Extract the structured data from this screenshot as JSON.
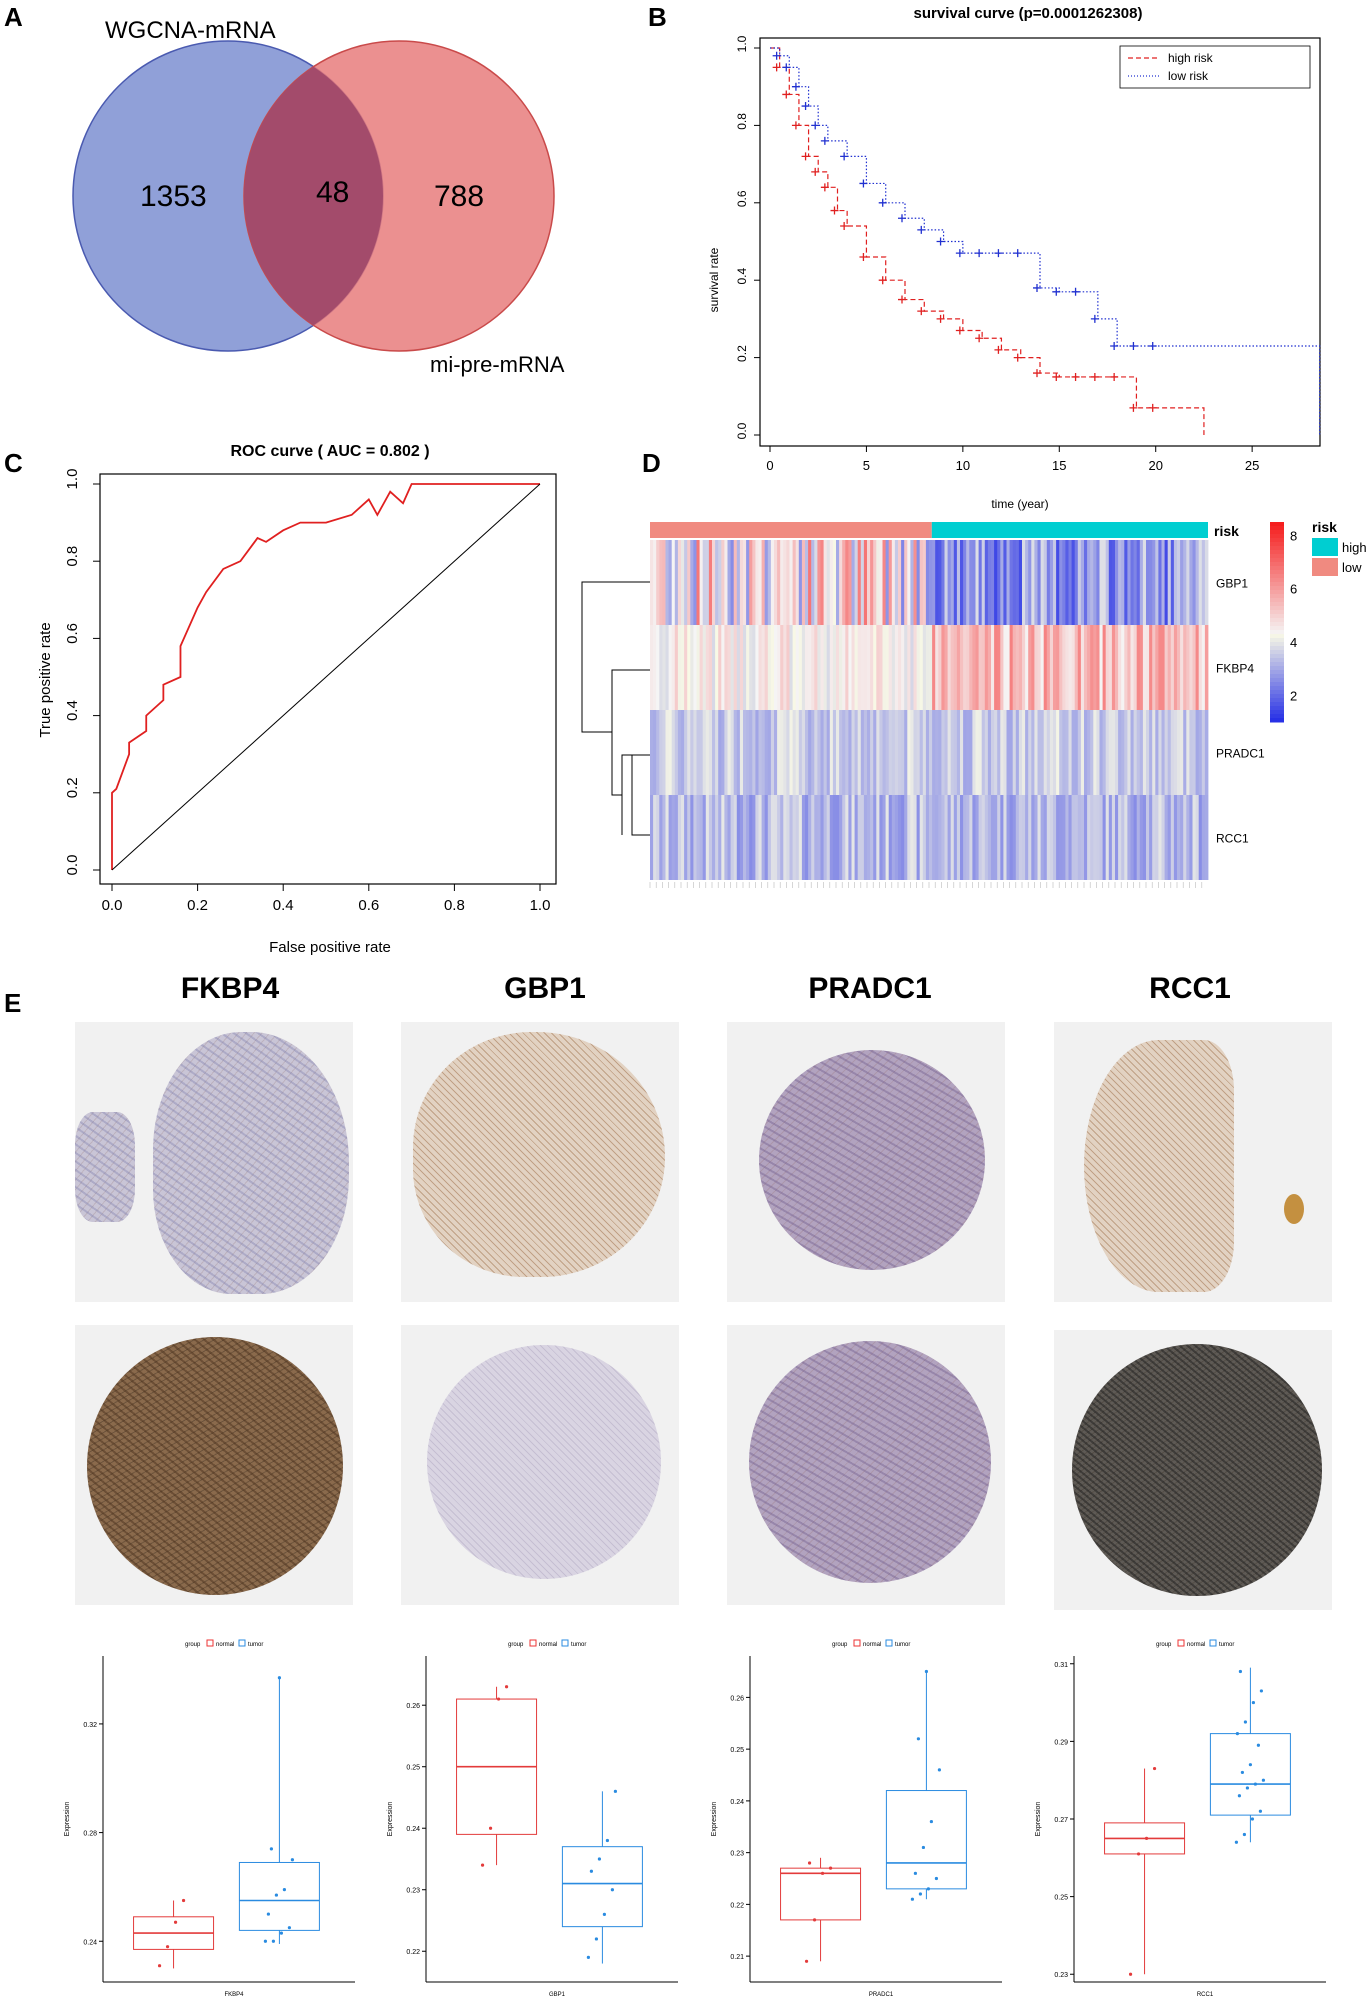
{
  "panels": {
    "A": "A",
    "B": "B",
    "C": "C",
    "D": "D",
    "E": "E"
  },
  "venn": {
    "left_label": "WGCNA-mRNA",
    "right_label": "mi-pre-mRNA",
    "left_only": "1353",
    "overlap": "48",
    "right_only": "788",
    "colors": {
      "left": "#7d8fd1",
      "right": "#e77c7c",
      "overlap": "#a34b6b"
    }
  },
  "survival": {
    "title": "survival curve (p=0.0001262308)",
    "xlabel": "time (year)",
    "ylabel": "survival rate",
    "xticks": [
      "0",
      "5",
      "10",
      "15",
      "20",
      "25"
    ],
    "yticks": [
      "0.0",
      "0.2",
      "0.4",
      "0.6",
      "0.8",
      "1.0"
    ],
    "legend": [
      "high risk",
      "low risk"
    ]
  },
  "roc": {
    "title": "ROC curve ( AUC =  0.802 )",
    "xlabel": "False positive rate",
    "ylabel": "True positive rate",
    "xticks": [
      "0.0",
      "0.2",
      "0.4",
      "0.6",
      "0.8",
      "1.0"
    ],
    "yticks": [
      "0.0",
      "0.2",
      "0.4",
      "0.6",
      "0.8",
      "1.0"
    ]
  },
  "heatmap": {
    "genes": [
      "GBP1",
      "FKBP4",
      "PRADC1",
      "RCC1"
    ],
    "risk_label": "risk",
    "legend_title": "risk",
    "legend_items": [
      "high",
      "low"
    ],
    "scale_ticks": [
      "8",
      "6",
      "4",
      "2"
    ]
  },
  "ihc": {
    "genes": [
      "FKBP4",
      "GBP1",
      "PRADC1",
      "RCC1"
    ]
  },
  "boxplots": {
    "group_label": "group",
    "legend": [
      "normal",
      "tumor"
    ],
    "ylabel": "Expression",
    "plots": [
      {
        "gene": "FKBP4",
        "yticks": [
          "0.32",
          "0.28",
          "0.24"
        ]
      },
      {
        "gene": "GBP1",
        "yticks": [
          "0.26",
          "0.25",
          "0.24",
          "0.23",
          "0.22"
        ]
      },
      {
        "gene": "PRADC1",
        "yticks": [
          "0.26",
          "0.25",
          "0.24",
          "0.23",
          "0.22",
          "0.21"
        ]
      },
      {
        "gene": "RCC1",
        "yticks": [
          "0.31",
          "0.29",
          "0.27",
          "0.25",
          "0.23"
        ]
      }
    ]
  },
  "chart_data": [
    {
      "type": "line",
      "title": "survival curve (p=0.0001262308)",
      "xlabel": "time (year)",
      "ylabel": "survival rate",
      "xlim": [
        0,
        28
      ],
      "ylim": [
        0,
        1
      ],
      "series": [
        {
          "name": "high risk",
          "color": "#e02020",
          "x": [
            0,
            0.5,
            1,
            1.5,
            2,
            2.5,
            3,
            3.5,
            4,
            5,
            6,
            7,
            8,
            9,
            10,
            11,
            12,
            13,
            14,
            15,
            16,
            17,
            18,
            19,
            20,
            22.5
          ],
          "y": [
            1,
            0.95,
            0.88,
            0.8,
            0.72,
            0.68,
            0.64,
            0.58,
            0.54,
            0.46,
            0.4,
            0.35,
            0.32,
            0.3,
            0.27,
            0.25,
            0.22,
            0.2,
            0.16,
            0.15,
            0.15,
            0.15,
            0.15,
            0.07,
            0.07,
            0
          ]
        },
        {
          "name": "low risk",
          "color": "#2030d0",
          "x": [
            0,
            0.5,
            1,
            1.5,
            2,
            2.5,
            3,
            4,
            5,
            6,
            7,
            8,
            9,
            10,
            11,
            12,
            13,
            14,
            15,
            16,
            17,
            18,
            19,
            20,
            28.5
          ],
          "y": [
            1,
            0.98,
            0.95,
            0.9,
            0.85,
            0.8,
            0.76,
            0.72,
            0.65,
            0.6,
            0.56,
            0.53,
            0.5,
            0.47,
            0.47,
            0.47,
            0.47,
            0.38,
            0.37,
            0.37,
            0.3,
            0.23,
            0.23,
            0.23,
            0
          ]
        }
      ]
    },
    {
      "type": "line",
      "title": "ROC curve ( AUC =  0.802 )",
      "xlabel": "False positive rate",
      "ylabel": "True positive rate",
      "xlim": [
        0,
        1
      ],
      "ylim": [
        0,
        1
      ],
      "series": [
        {
          "name": "ROC",
          "color": "#e02020",
          "x": [
            0,
            0,
            0.01,
            0.04,
            0.04,
            0.08,
            0.08,
            0.12,
            0.12,
            0.16,
            0.16,
            0.2,
            0.22,
            0.26,
            0.3,
            0.34,
            0.36,
            0.4,
            0.44,
            0.5,
            0.56,
            0.6,
            0.62,
            0.65,
            0.68,
            0.7,
            0.74,
            0.8,
            0.9,
            1.0
          ],
          "y": [
            0,
            0.2,
            0.21,
            0.3,
            0.33,
            0.36,
            0.4,
            0.44,
            0.48,
            0.5,
            0.58,
            0.68,
            0.72,
            0.78,
            0.8,
            0.86,
            0.85,
            0.88,
            0.9,
            0.9,
            0.92,
            0.96,
            0.92,
            0.98,
            0.95,
            1.0,
            1.0,
            1.0,
            1.0,
            1.0
          ]
        },
        {
          "name": "diagonal",
          "color": "#000000",
          "x": [
            0,
            1
          ],
          "y": [
            0,
            1
          ]
        }
      ]
    },
    {
      "type": "box",
      "title": "FKBP4",
      "ylabel": "Expression",
      "ylim": [
        0.225,
        0.345
      ],
      "series": [
        {
          "name": "normal",
          "q1": 0.237,
          "median": 0.243,
          "q3": 0.249,
          "min": 0.23,
          "max": 0.255,
          "points": [
            0.231,
            0.238,
            0.247,
            0.255
          ]
        },
        {
          "name": "tumor",
          "q1": 0.244,
          "median": 0.255,
          "q3": 0.269,
          "min": 0.239,
          "max": 0.337,
          "points": [
            0.24,
            0.24,
            0.243,
            0.245,
            0.25,
            0.257,
            0.259,
            0.27,
            0.274,
            0.337
          ]
        }
      ]
    },
    {
      "type": "box",
      "title": "GBP1",
      "ylabel": "Expression",
      "ylim": [
        0.215,
        0.268
      ],
      "series": [
        {
          "name": "normal",
          "q1": 0.239,
          "median": 0.25,
          "q3": 0.261,
          "min": 0.234,
          "max": 0.263,
          "points": [
            0.234,
            0.24,
            0.261,
            0.263
          ]
        },
        {
          "name": "tumor",
          "q1": 0.224,
          "median": 0.231,
          "q3": 0.237,
          "min": 0.218,
          "max": 0.246,
          "points": [
            0.219,
            0.222,
            0.226,
            0.23,
            0.233,
            0.235,
            0.238,
            0.246
          ]
        }
      ]
    },
    {
      "type": "box",
      "title": "PRADC1",
      "ylabel": "Expression",
      "ylim": [
        0.205,
        0.268
      ],
      "series": [
        {
          "name": "normal",
          "q1": 0.217,
          "median": 0.226,
          "q3": 0.227,
          "min": 0.209,
          "max": 0.229,
          "points": [
            0.209,
            0.217,
            0.226,
            0.227,
            0.228
          ]
        },
        {
          "name": "tumor",
          "q1": 0.223,
          "median": 0.228,
          "q3": 0.242,
          "min": 0.221,
          "max": 0.265,
          "points": [
            0.221,
            0.222,
            0.223,
            0.225,
            0.226,
            0.231,
            0.236,
            0.246,
            0.252,
            0.265
          ]
        }
      ]
    },
    {
      "type": "box",
      "title": "RCC1",
      "ylabel": "Expression",
      "ylim": [
        0.228,
        0.312
      ],
      "series": [
        {
          "name": "normal",
          "q1": 0.261,
          "median": 0.265,
          "q3": 0.269,
          "min": 0.23,
          "max": 0.283,
          "points": [
            0.23,
            0.261,
            0.265,
            0.283
          ]
        },
        {
          "name": "tumor",
          "q1": 0.271,
          "median": 0.279,
          "q3": 0.292,
          "min": 0.264,
          "max": 0.309,
          "points": [
            0.264,
            0.266,
            0.27,
            0.272,
            0.276,
            0.278,
            0.279,
            0.28,
            0.282,
            0.284,
            0.289,
            0.292,
            0.295,
            0.3,
            0.303,
            0.308
          ]
        }
      ]
    }
  ]
}
